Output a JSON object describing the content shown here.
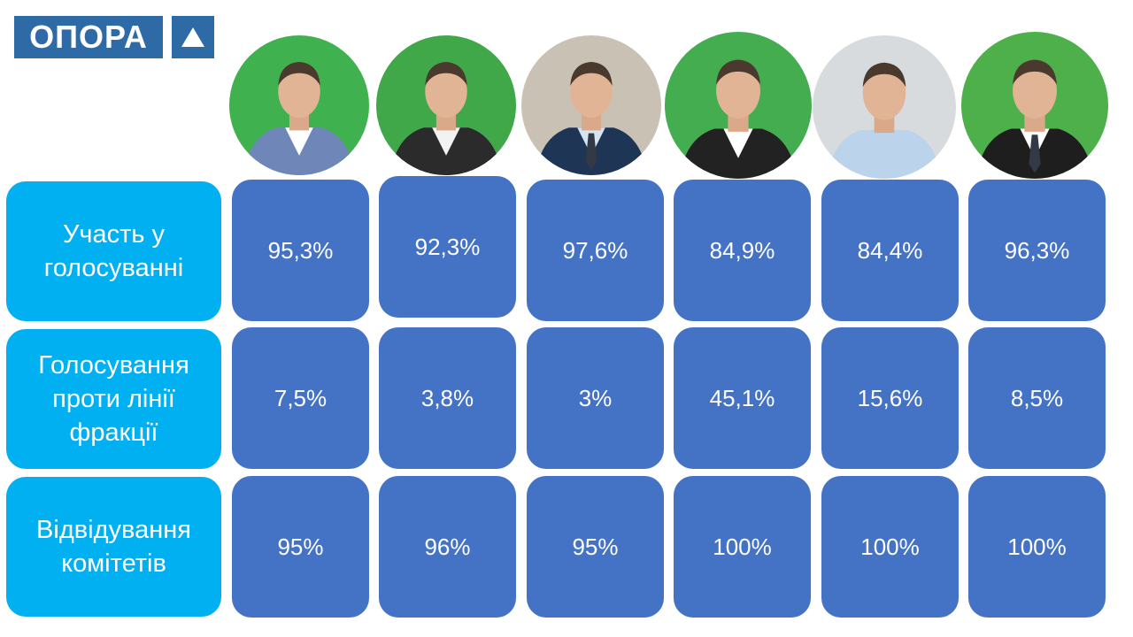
{
  "logo": {
    "text": "ОПОРА",
    "mark_icon": "triangle-icon",
    "color": "#2e6aa6"
  },
  "colors": {
    "label_bg": "#00b0f0",
    "cell_bg": "#4472c4",
    "text": "#ffffff"
  },
  "photos": [
    {
      "icon": "person-photo-1",
      "bg": "#3fb24f",
      "suit": "#6f86b8",
      "shirt": "#ffffff",
      "tie": false
    },
    {
      "icon": "person-photo-2",
      "bg": "#41a84a",
      "suit": "#2b2b2b",
      "shirt": "#f2f2f2",
      "tie": false
    },
    {
      "icon": "person-photo-3",
      "bg": "#c9c2b4",
      "suit": "#1f3556",
      "shirt": "#d6e3f2",
      "tie": true
    },
    {
      "icon": "person-photo-4",
      "bg": "#43ad50",
      "suit": "#222222",
      "shirt": "#ffffff",
      "tie": false
    },
    {
      "icon": "person-photo-5",
      "bg": "#d8dbde",
      "suit": "#bcd3ec",
      "shirt": "#bcd3ec",
      "tie": false
    },
    {
      "icon": "person-photo-6",
      "bg": "#4eb04a",
      "suit": "#1e1e1e",
      "shirt": "#ffffff",
      "tie": true
    }
  ],
  "rows": [
    {
      "label": "Участь у\nголосуванні",
      "values": [
        "95,3%",
        "92,3%",
        "97,6%",
        "84,9%",
        "84,4%",
        "96,3%"
      ]
    },
    {
      "label": "Голосування\nпроти лінії\nфракції",
      "values": [
        "7,5%",
        "3,8%",
        "3%",
        "45,1%",
        "15,6%",
        "8,5%"
      ]
    },
    {
      "label": "Відвідування\nкомітетів",
      "values": [
        "95%",
        "96%",
        "95%",
        "100%",
        "100%",
        "100%"
      ]
    }
  ]
}
